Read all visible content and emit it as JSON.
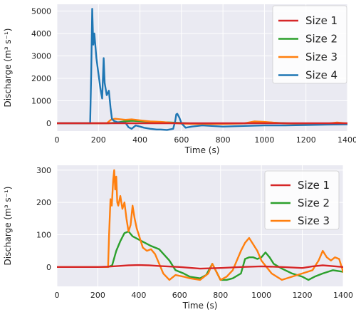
{
  "chart_data": [
    {
      "type": "line",
      "title": "",
      "xlabel": "Time (s)",
      "ylabel": "Discharge (m³ s⁻¹)",
      "xlim": [
        0,
        1400
      ],
      "ylim": [
        -350,
        5300
      ],
      "xticks": [
        0,
        200,
        400,
        600,
        800,
        1000,
        1200,
        1400
      ],
      "yticks": [
        0,
        1000,
        2000,
        3000,
        4000,
        5000
      ],
      "grid": true,
      "background": "#eaeaf2",
      "legend_position": "top-right",
      "series": [
        {
          "name": "Size 1",
          "color": "#d62728",
          "x": [
            0,
            200,
            400,
            600,
            800,
            1000,
            1200,
            1400
          ],
          "y": [
            0,
            0,
            0,
            0,
            0,
            0,
            0,
            0
          ]
        },
        {
          "name": "Size 2",
          "color": "#2ca02c",
          "x": [
            0,
            250,
            280,
            320,
            360,
            400,
            450,
            500,
            550,
            600,
            650,
            700,
            800,
            900,
            950,
            1000,
            1050,
            1100,
            1200,
            1300,
            1400
          ],
          "y": [
            0,
            0,
            20,
            80,
            110,
            90,
            60,
            50,
            30,
            10,
            -10,
            -20,
            -20,
            -10,
            30,
            40,
            20,
            0,
            -30,
            -20,
            -10
          ]
        },
        {
          "name": "Size 3",
          "color": "#ff7f0e",
          "x": [
            0,
            240,
            260,
            280,
            300,
            330,
            360,
            400,
            450,
            500,
            550,
            600,
            700,
            800,
            900,
            950,
            1000,
            1050,
            1100,
            1200,
            1300,
            1350,
            1400
          ],
          "y": [
            0,
            0,
            150,
            200,
            180,
            150,
            170,
            130,
            80,
            60,
            20,
            -20,
            -40,
            -30,
            -10,
            80,
            60,
            20,
            -10,
            -30,
            -20,
            30,
            -10
          ]
        },
        {
          "name": "Size 4",
          "color": "#1f77b4",
          "x": [
            0,
            160,
            165,
            170,
            175,
            180,
            190,
            200,
            210,
            218,
            225,
            230,
            240,
            250,
            258,
            265,
            275,
            290,
            310,
            330,
            345,
            360,
            380,
            400,
            420,
            450,
            480,
            500,
            530,
            560,
            570,
            575,
            580,
            590,
            600,
            620,
            650,
            700,
            800,
            900,
            1000,
            1100,
            1200,
            1300,
            1400
          ],
          "y": [
            0,
            0,
            2200,
            5100,
            3500,
            4000,
            2900,
            2200,
            1500,
            1100,
            2900,
            1800,
            1250,
            1450,
            700,
            200,
            100,
            50,
            30,
            20,
            -180,
            -250,
            -100,
            -150,
            -200,
            -250,
            -280,
            -280,
            -300,
            -250,
            100,
            400,
            420,
            250,
            0,
            -200,
            -150,
            -100,
            -150,
            -120,
            -100,
            -100,
            -80,
            -60,
            -50
          ]
        }
      ]
    },
    {
      "type": "line",
      "title": "",
      "xlabel": "Time (s)",
      "ylabel": "Discharge (m³ s⁻¹)",
      "xlim": [
        0,
        1400
      ],
      "ylim": [
        -60,
        315
      ],
      "xticks": [
        0,
        200,
        400,
        600,
        800,
        1000,
        1200,
        1400
      ],
      "yticks": [
        0,
        100,
        200,
        300
      ],
      "grid": true,
      "background": "#eaeaf2",
      "legend_position": "top-right",
      "series": [
        {
          "name": "Size 1",
          "color": "#d62728",
          "x": [
            0,
            200,
            250,
            300,
            350,
            400,
            450,
            500,
            600,
            700,
            800,
            900,
            1000,
            1100,
            1200,
            1250,
            1300,
            1400
          ],
          "y": [
            0,
            0,
            1,
            3,
            5,
            6,
            5,
            3,
            0,
            -5,
            -3,
            0,
            2,
            0,
            -3,
            2,
            5,
            0
          ]
        },
        {
          "name": "Size 2",
          "color": "#2ca02c",
          "x": [
            0,
            250,
            270,
            290,
            310,
            330,
            350,
            370,
            400,
            430,
            460,
            500,
            550,
            580,
            620,
            650,
            700,
            730,
            760,
            800,
            830,
            860,
            900,
            920,
            940,
            960,
            980,
            1000,
            1020,
            1040,
            1060,
            1100,
            1150,
            1200,
            1230,
            1260,
            1300,
            1350,
            1400
          ],
          "y": [
            0,
            0,
            5,
            50,
            80,
            105,
            110,
            95,
            85,
            75,
            65,
            55,
            20,
            -10,
            -20,
            -30,
            -35,
            -25,
            10,
            -40,
            -40,
            -35,
            -20,
            25,
            30,
            30,
            25,
            30,
            45,
            30,
            10,
            -5,
            -20,
            -30,
            -40,
            -30,
            -20,
            -10,
            -15
          ]
        },
        {
          "name": "Size 3",
          "color": "#ff7f0e",
          "x": [
            0,
            240,
            250,
            255,
            262,
            268,
            275,
            280,
            285,
            290,
            295,
            300,
            310,
            320,
            330,
            340,
            350,
            360,
            370,
            380,
            390,
            400,
            420,
            440,
            460,
            480,
            500,
            520,
            550,
            580,
            620,
            650,
            700,
            740,
            760,
            800,
            830,
            860,
            900,
            920,
            940,
            960,
            980,
            1000,
            1050,
            1100,
            1150,
            1200,
            1250,
            1280,
            1300,
            1320,
            1340,
            1360,
            1380,
            1400
          ],
          "y": [
            0,
            0,
            0,
            100,
            210,
            190,
            270,
            300,
            240,
            280,
            200,
            190,
            220,
            180,
            200,
            150,
            110,
            130,
            190,
            150,
            120,
            100,
            60,
            50,
            55,
            40,
            10,
            -20,
            -40,
            -25,
            -30,
            -35,
            -40,
            -20,
            10,
            -40,
            -30,
            -10,
            50,
            75,
            90,
            70,
            50,
            20,
            -20,
            -40,
            -30,
            -20,
            -10,
            20,
            50,
            30,
            20,
            30,
            25,
            -15
          ]
        }
      ]
    }
  ]
}
